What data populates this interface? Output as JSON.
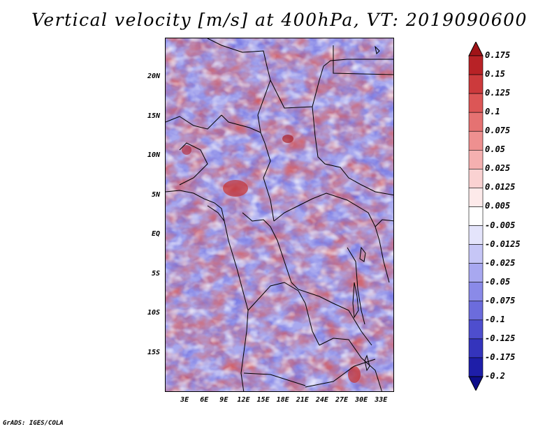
{
  "title": "Vertical velocity [m/s] at 400hPa, VT: 2019090600",
  "credit": "GrADS: IGES/COLA",
  "map": {
    "variable": "Vertical velocity",
    "units": "m/s",
    "level": "400hPa",
    "valid_time": "2019090600",
    "lat_range": [
      -20,
      25
    ],
    "lon_range": [
      0,
      35
    ],
    "lat_labels": [
      {
        "value": 20,
        "text": "20N"
      },
      {
        "value": 15,
        "text": "15N"
      },
      {
        "value": 10,
        "text": "10N"
      },
      {
        "value": 5,
        "text": "5N"
      },
      {
        "value": 0,
        "text": "EQ"
      },
      {
        "value": -5,
        "text": "5S"
      },
      {
        "value": -10,
        "text": "10S"
      },
      {
        "value": -15,
        "text": "15S"
      }
    ],
    "lon_labels": [
      {
        "value": 3,
        "text": "3E"
      },
      {
        "value": 6,
        "text": "6E"
      },
      {
        "value": 9,
        "text": "9E"
      },
      {
        "value": 12,
        "text": "12E"
      },
      {
        "value": 15,
        "text": "15E"
      },
      {
        "value": 18,
        "text": "18E"
      },
      {
        "value": 21,
        "text": "21E"
      },
      {
        "value": 24,
        "text": "24E"
      },
      {
        "value": 27,
        "text": "27E"
      },
      {
        "value": 30,
        "text": "30E"
      },
      {
        "value": 33,
        "text": "33E"
      }
    ]
  },
  "colorbar": {
    "levels_top_to_bottom": [
      "0.175",
      "0.15",
      "0.125",
      "0.1",
      "0.075",
      "0.05",
      "0.025",
      "0.0125",
      "0.005",
      "-0.005",
      "-0.0125",
      "-0.025",
      "-0.05",
      "-0.075",
      "-0.1",
      "-0.125",
      "-0.175",
      "-0.2"
    ],
    "colors_top_to_bottom": [
      "#a01418",
      "#b82226",
      "#cc3a3c",
      "#dc5656",
      "#e57272",
      "#ee9090",
      "#f5b0b0",
      "#fad2d2",
      "#fdeaea",
      "#ffffff",
      "#e4e4fb",
      "#c6c6f6",
      "#a8a8f0",
      "#8a8ae8",
      "#6c6cdc",
      "#4e4ece",
      "#3434bc",
      "#1e1ea8",
      "#0e0e8a"
    ]
  }
}
